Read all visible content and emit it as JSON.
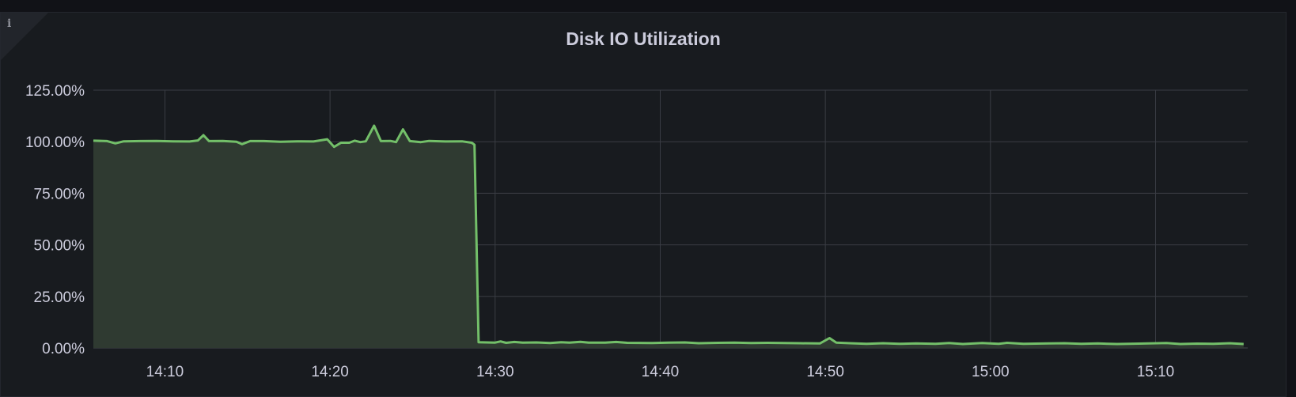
{
  "panel": {
    "title": "Disk IO Utilization",
    "info_icon": "info-icon"
  },
  "chart_data": {
    "type": "area",
    "title": "Disk IO Utilization",
    "xlabel": "",
    "ylabel": "",
    "x_ticks": [
      "14:10",
      "14:20",
      "14:30",
      "14:40",
      "14:50",
      "15:00",
      "15:10"
    ],
    "y_ticks": [
      "0.00%",
      "25.00%",
      "50.00%",
      "75.00%",
      "100.00%",
      "125.00%"
    ],
    "ylim": [
      0,
      125
    ],
    "xlim": [
      "14:05:40",
      "15:15:35"
    ],
    "grid": true,
    "colors": {
      "line": "#73bf69",
      "fill": "#2f3a31",
      "background": "#181b1f",
      "grid": "#3a3d44"
    },
    "series": [
      {
        "points": [
          [
            "14:05:40",
            100.5
          ],
          [
            "14:06:30",
            100.3
          ],
          [
            "14:07:00",
            99.2
          ],
          [
            "14:07:30",
            100.2
          ],
          [
            "14:08:30",
            100.3
          ],
          [
            "14:09:30",
            100.4
          ],
          [
            "14:10:30",
            100.2
          ],
          [
            "14:11:30",
            100.1
          ],
          [
            "14:12:00",
            100.6
          ],
          [
            "14:12:20",
            103.2
          ],
          [
            "14:12:40",
            100.3
          ],
          [
            "14:13:30",
            100.4
          ],
          [
            "14:14:20",
            100.0
          ],
          [
            "14:14:40",
            98.8
          ],
          [
            "14:15:10",
            100.3
          ],
          [
            "14:16:00",
            100.3
          ],
          [
            "14:17:00",
            100.0
          ],
          [
            "14:18:00",
            100.2
          ],
          [
            "14:19:00",
            100.1
          ],
          [
            "14:19:50",
            101.2
          ],
          [
            "14:20:15",
            97.5
          ],
          [
            "14:20:40",
            99.5
          ],
          [
            "14:21:10",
            99.5
          ],
          [
            "14:21:30",
            100.5
          ],
          [
            "14:21:50",
            99.8
          ],
          [
            "14:22:10",
            100.2
          ],
          [
            "14:22:40",
            107.8
          ],
          [
            "14:23:05",
            100.3
          ],
          [
            "14:23:40",
            100.4
          ],
          [
            "14:24:00",
            99.8
          ],
          [
            "14:24:25",
            106.0
          ],
          [
            "14:24:50",
            100.3
          ],
          [
            "14:25:30",
            99.8
          ],
          [
            "14:26:00",
            100.4
          ],
          [
            "14:27:00",
            100.1
          ],
          [
            "14:28:00",
            100.2
          ],
          [
            "14:28:35",
            99.5
          ],
          [
            "14:28:45",
            98.5
          ],
          [
            "14:29:00",
            2.8
          ],
          [
            "14:30:00",
            2.6
          ],
          [
            "14:30:20",
            3.2
          ],
          [
            "14:30:40",
            2.5
          ],
          [
            "14:31:10",
            2.9
          ],
          [
            "14:31:40",
            2.6
          ],
          [
            "14:32:30",
            2.7
          ],
          [
            "14:33:20",
            2.4
          ],
          [
            "14:34:00",
            2.8
          ],
          [
            "14:34:30",
            2.6
          ],
          [
            "14:35:10",
            3.0
          ],
          [
            "14:35:40",
            2.6
          ],
          [
            "14:36:40",
            2.6
          ],
          [
            "14:37:20",
            2.9
          ],
          [
            "14:38:00",
            2.5
          ],
          [
            "14:39:30",
            2.4
          ],
          [
            "14:40:30",
            2.6
          ],
          [
            "14:41:30",
            2.7
          ],
          [
            "14:42:20",
            2.3
          ],
          [
            "14:43:30",
            2.5
          ],
          [
            "14:44:30",
            2.6
          ],
          [
            "14:45:30",
            2.4
          ],
          [
            "14:46:30",
            2.5
          ],
          [
            "14:47:30",
            2.4
          ],
          [
            "14:48:30",
            2.3
          ],
          [
            "14:49:40",
            2.2
          ],
          [
            "14:50:15",
            4.8
          ],
          [
            "14:50:40",
            2.6
          ],
          [
            "14:51:30",
            2.3
          ],
          [
            "14:52:30",
            2.0
          ],
          [
            "14:53:30",
            2.3
          ],
          [
            "14:54:30",
            2.0
          ],
          [
            "14:55:30",
            2.2
          ],
          [
            "14:56:40",
            2.0
          ],
          [
            "14:57:30",
            2.4
          ],
          [
            "14:58:20",
            1.9
          ],
          [
            "14:59:30",
            2.4
          ],
          [
            "15:00:30",
            2.0
          ],
          [
            "15:01:00",
            2.5
          ],
          [
            "15:02:00",
            2.0
          ],
          [
            "15:03:30",
            2.2
          ],
          [
            "15:04:30",
            2.3
          ],
          [
            "15:05:30",
            2.0
          ],
          [
            "15:06:30",
            2.2
          ],
          [
            "15:07:40",
            1.9
          ],
          [
            "15:09:00",
            2.1
          ],
          [
            "15:10:40",
            2.4
          ],
          [
            "15:11:30",
            1.9
          ],
          [
            "15:12:30",
            2.1
          ],
          [
            "15:13:30",
            2.0
          ],
          [
            "15:14:30",
            2.3
          ],
          [
            "15:15:20",
            1.9
          ]
        ]
      }
    ]
  }
}
